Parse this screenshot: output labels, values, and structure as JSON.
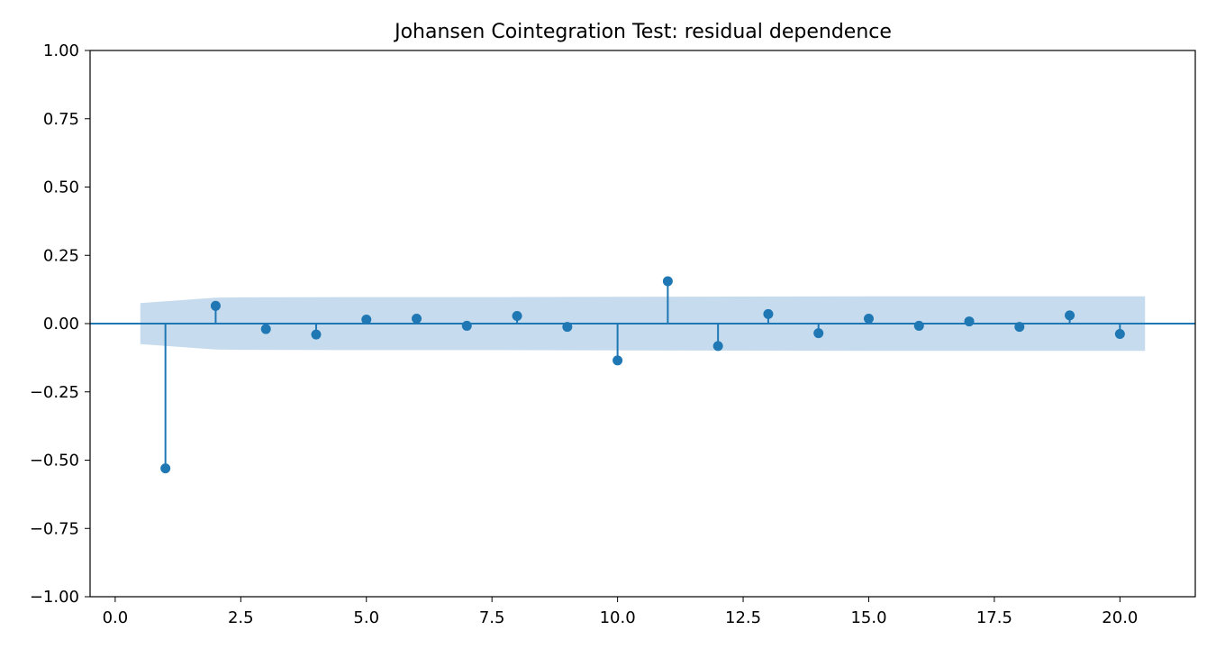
{
  "chart_data": {
    "type": "stem",
    "title": "Johansen Cointegration Test: residual dependence",
    "xlabel": "",
    "ylabel": "",
    "xlim": [
      -0.5,
      21.5
    ],
    "ylim": [
      -1.0,
      1.0
    ],
    "x_ticks": [
      "0.0",
      "2.5",
      "5.0",
      "7.5",
      "10.0",
      "12.5",
      "15.0",
      "17.5",
      "20.0"
    ],
    "y_ticks": [
      "1.00",
      "0.75",
      "0.50",
      "0.25",
      "0.00",
      "−0.25",
      "−0.50",
      "−0.75",
      "−1.00"
    ],
    "grid": false,
    "colors": {
      "series": "#1f77b4",
      "band": "#c6dcee"
    },
    "series": [
      {
        "x": [
          1,
          2,
          3,
          4,
          5,
          6,
          7,
          8,
          9,
          10,
          11,
          12,
          13,
          14,
          15,
          16,
          17,
          18,
          19,
          20
        ],
        "values": [
          -0.53,
          0.065,
          -0.02,
          -0.04,
          0.015,
          0.018,
          -0.008,
          0.028,
          -0.012,
          -0.135,
          0.155,
          -0.082,
          0.035,
          -0.035,
          0.018,
          -0.008,
          0.008,
          -0.012,
          0.03,
          -0.038
        ]
      }
    ],
    "confidence_band": {
      "x": [
        0.5,
        2,
        2.5,
        5,
        7.5,
        10,
        12.5,
        15,
        17.5,
        20.5
      ],
      "upper": [
        0.075,
        0.095,
        0.096,
        0.097,
        0.097,
        0.098,
        0.099,
        0.1,
        0.1,
        0.1
      ],
      "lower": [
        -0.075,
        -0.095,
        -0.096,
        -0.097,
        -0.097,
        -0.098,
        -0.099,
        -0.1,
        -0.1,
        -0.1
      ]
    }
  }
}
